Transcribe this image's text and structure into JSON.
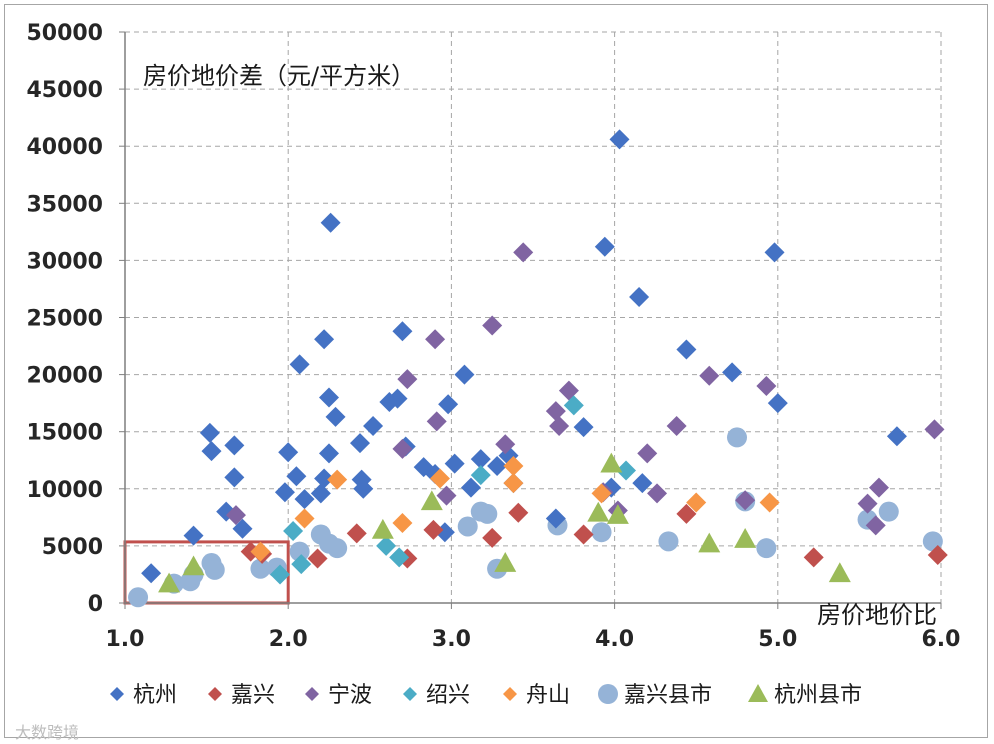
{
  "chart_data": {
    "type": "scatter",
    "title": "",
    "ylabel": "房价地价差（元/平方米）",
    "xlabel": "房价地价比",
    "xlim": [
      1.0,
      6.0
    ],
    "ylim": [
      0,
      50000
    ],
    "x_ticks": [
      "1.0",
      "2.0",
      "3.0",
      "4.0",
      "5.0",
      "6.0"
    ],
    "y_ticks": [
      "0",
      "5000",
      "10000",
      "15000",
      "20000",
      "25000",
      "30000",
      "35000",
      "40000",
      "45000",
      "50000"
    ],
    "grid": "dashed",
    "legend_position": "bottom",
    "highlight_box": {
      "x": [
        1.0,
        2.0
      ],
      "y": [
        0,
        5000
      ],
      "color": "#c0504d"
    },
    "series": [
      {
        "name": "杭州",
        "marker": "diamond",
        "color": "#4472c4",
        "points": [
          [
            1.16,
            2600
          ],
          [
            1.42,
            5900
          ],
          [
            1.52,
            14900
          ],
          [
            1.53,
            13300
          ],
          [
            1.62,
            8000
          ],
          [
            1.67,
            13800
          ],
          [
            1.67,
            11000
          ],
          [
            1.72,
            6500
          ],
          [
            1.98,
            9700
          ],
          [
            2.0,
            13200
          ],
          [
            2.05,
            11100
          ],
          [
            2.07,
            20900
          ],
          [
            2.1,
            9100
          ],
          [
            2.2,
            9600
          ],
          [
            2.22,
            23100
          ],
          [
            2.22,
            10900
          ],
          [
            2.25,
            13100
          ],
          [
            2.25,
            18000
          ],
          [
            2.26,
            33300
          ],
          [
            2.29,
            16300
          ],
          [
            2.44,
            14000
          ],
          [
            2.45,
            10800
          ],
          [
            2.46,
            10000
          ],
          [
            2.52,
            15500
          ],
          [
            2.62,
            17600
          ],
          [
            2.67,
            17900
          ],
          [
            2.7,
            23800
          ],
          [
            2.72,
            13700
          ],
          [
            2.83,
            11900
          ],
          [
            2.9,
            11300
          ],
          [
            2.96,
            6200
          ],
          [
            2.98,
            17400
          ],
          [
            3.02,
            12200
          ],
          [
            3.08,
            20000
          ],
          [
            3.12,
            10100
          ],
          [
            3.18,
            12600
          ],
          [
            3.28,
            12000
          ],
          [
            3.35,
            12900
          ],
          [
            3.38,
            10500
          ],
          [
            3.64,
            7400
          ],
          [
            3.81,
            15400
          ],
          [
            3.94,
            31200
          ],
          [
            3.98,
            10100
          ],
          [
            4.03,
            40600
          ],
          [
            4.15,
            26800
          ],
          [
            4.17,
            10500
          ],
          [
            4.44,
            22200
          ],
          [
            4.72,
            20200
          ],
          [
            4.98,
            30700
          ],
          [
            5.0,
            17500
          ],
          [
            5.73,
            14600
          ]
        ]
      },
      {
        "name": "嘉兴",
        "marker": "diamond",
        "color": "#c0504d",
        "points": [
          [
            1.77,
            4500
          ],
          [
            1.84,
            4300
          ],
          [
            2.18,
            3900
          ],
          [
            2.42,
            6100
          ],
          [
            2.73,
            3900
          ],
          [
            2.89,
            6400
          ],
          [
            3.25,
            5700
          ],
          [
            3.41,
            7900
          ],
          [
            3.81,
            6000
          ],
          [
            4.44,
            7800
          ],
          [
            5.22,
            4000
          ],
          [
            5.98,
            4200
          ]
        ]
      },
      {
        "name": "宁波",
        "marker": "diamond",
        "color": "#8064a2",
        "points": [
          [
            1.68,
            7700
          ],
          [
            2.7,
            13500
          ],
          [
            2.73,
            19600
          ],
          [
            2.9,
            23100
          ],
          [
            2.91,
            15900
          ],
          [
            2.97,
            9400
          ],
          [
            3.25,
            24300
          ],
          [
            3.33,
            13900
          ],
          [
            3.44,
            30700
          ],
          [
            3.64,
            16800
          ],
          [
            3.66,
            15500
          ],
          [
            3.72,
            18600
          ],
          [
            3.93,
            9700
          ],
          [
            4.02,
            8100
          ],
          [
            4.2,
            13100
          ],
          [
            4.26,
            9600
          ],
          [
            4.38,
            15500
          ],
          [
            4.58,
            19900
          ],
          [
            4.8,
            9000
          ],
          [
            4.93,
            19000
          ],
          [
            5.55,
            8700
          ],
          [
            5.6,
            6800
          ],
          [
            5.62,
            10100
          ],
          [
            5.96,
            15200
          ]
        ]
      },
      {
        "name": "绍兴",
        "marker": "diamond",
        "color": "#4bacc6",
        "points": [
          [
            1.95,
            2500
          ],
          [
            2.03,
            6300
          ],
          [
            2.08,
            3400
          ],
          [
            2.6,
            5000
          ],
          [
            2.68,
            4000
          ],
          [
            3.18,
            11200
          ],
          [
            3.75,
            17300
          ],
          [
            4.07,
            11600
          ]
        ]
      },
      {
        "name": "舟山",
        "marker": "diamond",
        "color": "#f79646",
        "points": [
          [
            1.83,
            4500
          ],
          [
            2.1,
            7400
          ],
          [
            2.3,
            10800
          ],
          [
            2.7,
            7000
          ],
          [
            2.93,
            10900
          ],
          [
            3.38,
            10500
          ],
          [
            3.38,
            12000
          ],
          [
            3.92,
            9600
          ],
          [
            4.5,
            8800
          ],
          [
            4.95,
            8800
          ]
        ]
      },
      {
        "name": "嘉兴县市",
        "marker": "circle",
        "color": "#95b3d7",
        "points": [
          [
            1.08,
            500
          ],
          [
            1.3,
            1700
          ],
          [
            1.4,
            1900
          ],
          [
            1.42,
            2500
          ],
          [
            1.53,
            3500
          ],
          [
            1.55,
            2900
          ],
          [
            1.83,
            3000
          ],
          [
            1.93,
            3100
          ],
          [
            2.07,
            4500
          ],
          [
            2.2,
            6000
          ],
          [
            2.25,
            5200
          ],
          [
            2.3,
            4800
          ],
          [
            3.1,
            6700
          ],
          [
            3.18,
            8000
          ],
          [
            3.22,
            7800
          ],
          [
            3.28,
            3000
          ],
          [
            3.65,
            6800
          ],
          [
            3.92,
            6200
          ],
          [
            4.33,
            5400
          ],
          [
            4.75,
            14500
          ],
          [
            4.8,
            8900
          ],
          [
            4.93,
            4800
          ],
          [
            5.55,
            7300
          ],
          [
            5.68,
            8000
          ],
          [
            5.95,
            5400
          ]
        ]
      },
      {
        "name": "杭州县市",
        "marker": "triangle",
        "color": "#9bbb59",
        "points": [
          [
            1.27,
            1700
          ],
          [
            1.42,
            3200
          ],
          [
            2.58,
            6400
          ],
          [
            2.88,
            8900
          ],
          [
            3.33,
            3500
          ],
          [
            3.9,
            7900
          ],
          [
            3.98,
            12200
          ],
          [
            4.02,
            7700
          ],
          [
            4.58,
            5200
          ],
          [
            4.8,
            5600
          ],
          [
            5.38,
            2600
          ]
        ]
      }
    ]
  },
  "watermark": "大数跨境"
}
